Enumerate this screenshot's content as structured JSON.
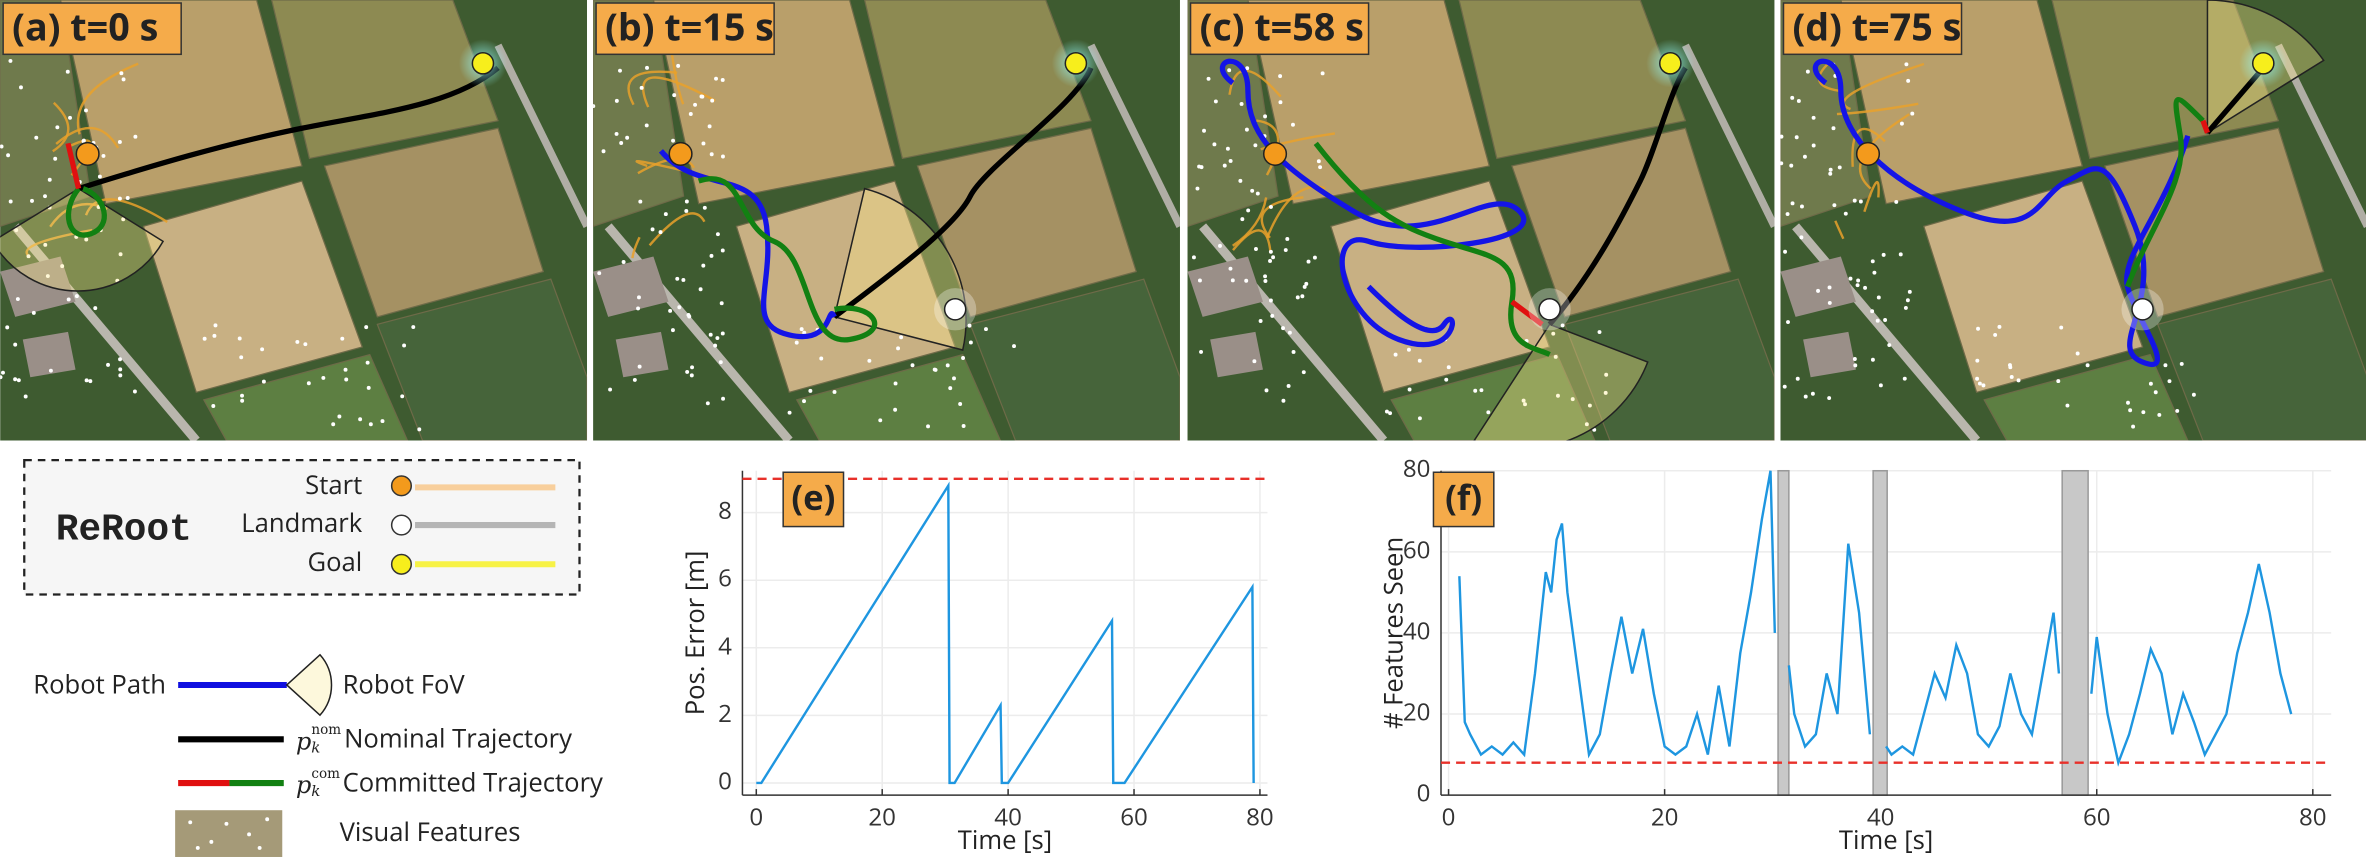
{
  "panels": [
    "(a) t=0 s",
    "(b) t=15 s",
    "(c) t=58 s",
    "(d) t=75 s"
  ],
  "legend": {
    "method": "ReRoot",
    "markers": [
      "Start",
      "Landmark",
      "Goal"
    ],
    "robot_path": "Robot Path",
    "robot_fov": "Robot FoV",
    "nominal": {
      "symbol": {
        "base": "p",
        "sub": "k",
        "sup": "nom"
      },
      "label": "Nominal Trajectory"
    },
    "committed": {
      "symbol": {
        "base": "p",
        "sub": "k",
        "sup": "com"
      },
      "label": "Committed Trajectory"
    },
    "visual_features": "Visual Features"
  },
  "chart_data": [
    {
      "type": "line",
      "title": "(e)",
      "x_label": "Time [s]",
      "y_label": "Pos. Error [m]",
      "x": [
        0,
        0.8,
        30.5,
        30.7,
        31.5,
        38.8,
        39,
        40,
        56.5,
        56.7,
        58.5,
        78.8,
        79
      ],
      "values": [
        0,
        0,
        8.8,
        0,
        0,
        2.3,
        0,
        0,
        4.8,
        0,
        0,
        5.8,
        0
      ],
      "color": "#1e96e0",
      "xlim": [
        -2.2,
        81.2
      ],
      "ylim": [
        -0.36,
        9.24
      ],
      "xticks": [
        0,
        20,
        40,
        60,
        80
      ],
      "yticks": [
        0,
        2,
        4,
        6,
        8
      ],
      "grid": true,
      "threshold": 9,
      "threshold_color": "#e8302a"
    },
    {
      "type": "line",
      "title": "(f)",
      "x_label": "Time [s]",
      "y_label": "# Features Seen",
      "x": [
        1,
        1.5,
        2,
        3,
        4,
        5,
        6,
        7,
        8,
        9,
        9.5,
        10,
        10.5,
        11,
        12,
        13,
        14,
        15,
        16,
        17,
        18,
        19,
        20,
        21,
        22,
        23,
        24,
        25,
        26,
        27,
        28,
        29,
        29.8,
        30.2,
        30.8,
        31.5,
        32,
        33,
        34,
        35,
        36,
        37,
        38,
        39,
        39.8,
        40.5,
        41,
        42,
        43,
        44,
        45,
        46,
        47,
        48,
        49,
        50,
        51,
        52,
        53,
        54,
        55,
        56,
        56.5,
        57.5,
        59.5,
        60,
        61,
        62,
        63,
        64,
        65,
        66,
        67,
        68,
        69,
        70,
        71,
        72,
        73,
        74,
        75,
        76,
        77,
        78
      ],
      "values": [
        54,
        18,
        15,
        10,
        12,
        10,
        13,
        10,
        30,
        55,
        50,
        63,
        67,
        50,
        30,
        10,
        15,
        30,
        44,
        30,
        41,
        25,
        12,
        10,
        12,
        20,
        10,
        27,
        12,
        35,
        50,
        68,
        80,
        40,
        null,
        32,
        20,
        12,
        15,
        30,
        20,
        62,
        45,
        15,
        null,
        12,
        10,
        12,
        10,
        20,
        30,
        24,
        37,
        30,
        15,
        12,
        17,
        30,
        20,
        15,
        30,
        45,
        30,
        null,
        25,
        39,
        20,
        8,
        15,
        25,
        36,
        30,
        15,
        25,
        18,
        10,
        15,
        20,
        35,
        45,
        57,
        45,
        30,
        20
      ],
      "color": "#1e96e0",
      "xlim": [
        -0.7,
        81.7
      ],
      "ylim": [
        0,
        80
      ],
      "xticks": [
        0,
        20,
        40,
        60,
        80
      ],
      "yticks": [
        0,
        20,
        40,
        60,
        80
      ],
      "grid": true,
      "threshold": 8,
      "threshold_color": "#e8302a",
      "bands": [
        [
          30.5,
          31.5
        ],
        [
          39.3,
          40.6
        ],
        [
          56.8,
          59.2
        ]
      ],
      "band_color": "#c8c8c8"
    }
  ]
}
